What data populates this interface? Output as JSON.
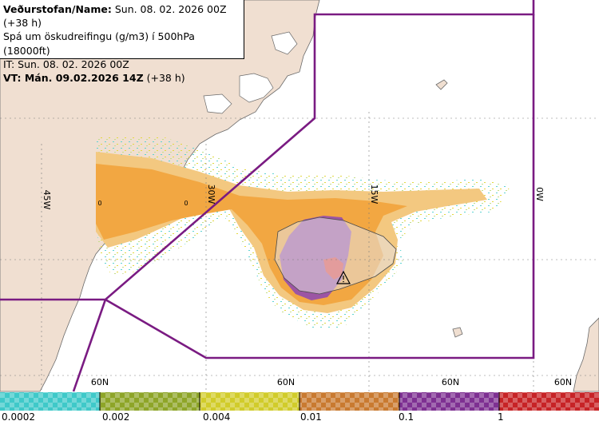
{
  "info": {
    "line1_label": "Veðurstofan/Name:",
    "line1_value": " Sun. 08. 02. 2026 00Z (+38 h)",
    "line2": "Spá um öskudreifingu (g/m3) í 500hPa (18000ft)",
    "line3": "IT: Sun. 08. 02. 2026 00Z",
    "line4_label": "VT: Mán. 09.02.2026 14Z",
    "line4_value": " (+38 h)"
  },
  "grid_labels": {
    "lon": [
      "45W",
      "30W",
      "15W",
      "0W"
    ],
    "lat": [
      "60N",
      "60N",
      "60N",
      "60N"
    ],
    "contour": [
      "0",
      "0"
    ]
  },
  "legend": {
    "labels": [
      "0.0002",
      "0.002",
      "0.004",
      "0.01",
      "0.1",
      "1"
    ],
    "colors": [
      "#3fc9c9",
      "#8ea528",
      "#d1cc2a",
      "#c97a30",
      "#7e3092",
      "#c72326"
    ]
  },
  "colors": {
    "land": "#f0dfd1",
    "sea": "#ffffff",
    "boundary": "#7a1b82",
    "ash_light": "#f3c880",
    "ash_mid": "#f2a742",
    "ash_high": "#9c55a4",
    "ash_peak": "#e04848"
  }
}
